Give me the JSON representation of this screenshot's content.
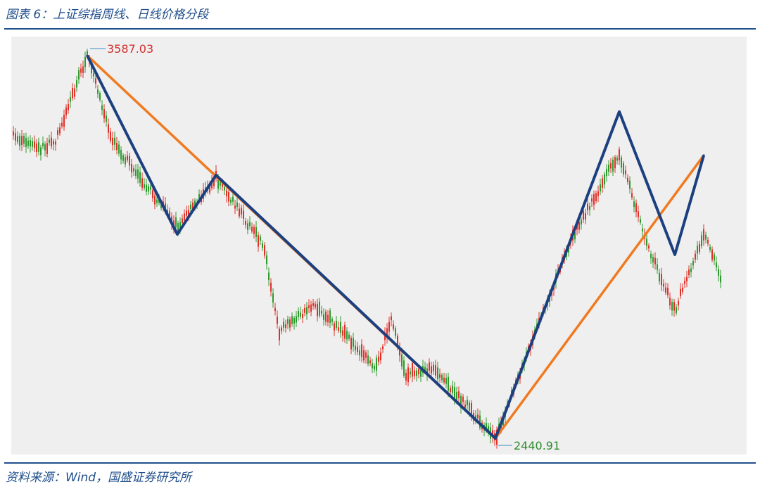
{
  "header": {
    "title": "图表 6：上证综指周线、日线价格分段"
  },
  "footer": {
    "source": "资料来源：Wind，国盛证券研究所"
  },
  "colors": {
    "up": "#e0302a",
    "down": "#2e9a2e",
    "weekly_segment": "#f07a20",
    "daily_segment": "#1c3f7f",
    "high_label": "#d32f2f",
    "low_label": "#2e8b2e",
    "background": "#efefef"
  },
  "chart_data": {
    "type": "line",
    "title": "",
    "xlabel": "",
    "ylabel": "",
    "annotations": [
      {
        "name": "high",
        "text": "3587.03",
        "value": 3587.03,
        "position": "top-left"
      },
      {
        "name": "low",
        "text": "2440.91",
        "value": 2440.91,
        "position": "bottom-center"
      }
    ],
    "ylim": [
      2440.91,
      3587.03
    ],
    "series": [
      {
        "segment": "weekly",
        "points": [
          {
            "i": 0,
            "y": 3587.03
          },
          {
            "i": 1,
            "y": 2440.91
          },
          {
            "i": 2,
            "y": 3288.0
          }
        ]
      },
      {
        "segment": "daily",
        "points": [
          {
            "i": 0,
            "y": 3587.03
          },
          {
            "i": 1,
            "y": 3052.0
          },
          {
            "i": 2,
            "y": 3229.0
          },
          {
            "i": 3,
            "y": 2440.91
          },
          {
            "i": 4,
            "y": 3419.0
          },
          {
            "i": 5,
            "y": 2991.0
          },
          {
            "i": 6,
            "y": 3288.0
          }
        ]
      }
    ]
  }
}
